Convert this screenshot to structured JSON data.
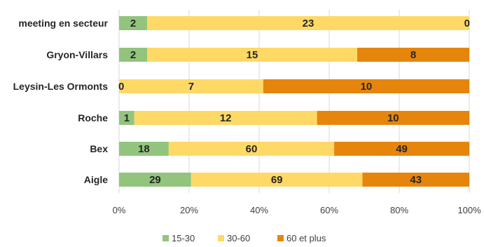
{
  "chart_data": {
    "type": "bar",
    "orientation": "horizontal",
    "stacked": "percent",
    "categories": [
      "meeting en secteur",
      "Gryon-Villars",
      "Leysin-Les Ormonts",
      "Roche",
      "Bex",
      "Aigle"
    ],
    "series": [
      {
        "name": "15-30",
        "color": "#92c47d",
        "values": [
          2,
          2,
          0,
          1,
          18,
          29
        ]
      },
      {
        "name": "30-60",
        "color": "#ffd966",
        "values": [
          23,
          15,
          7,
          12,
          60,
          69
        ]
      },
      {
        "name": "60 et plus",
        "color": "#e6850c",
        "values": [
          0,
          8,
          10,
          10,
          49,
          43
        ]
      }
    ],
    "x_ticks": [
      "0%",
      "20%",
      "40%",
      "60%",
      "80%",
      "100%"
    ],
    "xlim": [
      0,
      100
    ],
    "grid": true,
    "legend_position": "bottom"
  }
}
